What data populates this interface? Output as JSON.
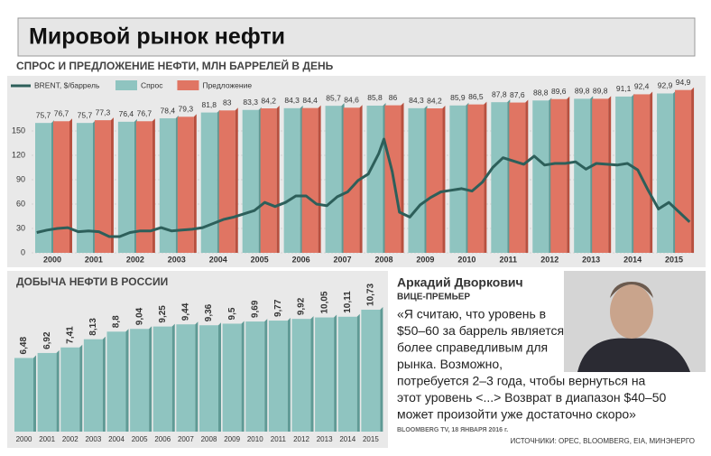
{
  "title": "Мировой рынок нефти",
  "chart_data": [
    {
      "type": "bar",
      "subtitle": "СПРОС И ПРЕДЛОЖЕНИЕ НЕФТИ, МЛН БАРРЕЛЕЙ В ДЕНЬ",
      "categories": [
        "2000",
        "2001",
        "2002",
        "2003",
        "2004",
        "2005",
        "2006",
        "2007",
        "2008",
        "2009",
        "2010",
        "2011",
        "2012",
        "2013",
        "2014",
        "2015"
      ],
      "ylim": [
        0,
        150
      ],
      "yticks": [
        0,
        30,
        60,
        90,
        120,
        150
      ],
      "grid": true,
      "y2lim": [
        0,
        100
      ],
      "xlim": [
        2000,
        2016
      ],
      "series": [
        {
          "name": "Спрос",
          "color": "#8fc4c0",
          "axis": "y2",
          "values": [
            75.7,
            75.7,
            76.4,
            78.4,
            81.8,
            83.3,
            84.3,
            85.7,
            85.8,
            84.3,
            85.9,
            87.8,
            88.8,
            89.8,
            91.1,
            92.9
          ],
          "value_labels": [
            "75,7",
            "75,7",
            "76,4",
            "78,4",
            "81,8",
            "83,3",
            "84,3",
            "85,7",
            "85,8",
            "84,3",
            "85,9",
            "87,8",
            "88,8",
            "89,8",
            "91,1",
            "92,9"
          ]
        },
        {
          "name": "Предложение",
          "color": "#e07563",
          "axis": "y2",
          "values": [
            76.7,
            77.3,
            76.7,
            79.3,
            83,
            84.2,
            84.4,
            84.6,
            86,
            84.2,
            86.5,
            87.6,
            89.6,
            89.8,
            92.4,
            94.9
          ],
          "value_labels": [
            "76,7",
            "77,3",
            "76,7",
            "79,3",
            "83",
            "84,2",
            "84,4",
            "84,6",
            "86",
            "84,2",
            "86,5",
            "87,6",
            "89,6",
            "89,8",
            "92,4",
            "94,9"
          ]
        },
        {
          "name": "BRENT, $/баррель",
          "type": "line",
          "color": "#2d5f5a",
          "x": [
            2000.125,
            2000.375,
            2000.625,
            2000.875,
            2001.125,
            2001.375,
            2001.625,
            2001.875,
            2002.125,
            2002.375,
            2002.625,
            2002.875,
            2003.125,
            2003.375,
            2003.625,
            2003.875,
            2004.125,
            2004.375,
            2004.625,
            2004.875,
            2005.125,
            2005.375,
            2005.625,
            2005.875,
            2006.125,
            2006.375,
            2006.625,
            2006.875,
            2007.125,
            2007.375,
            2007.625,
            2007.875,
            2008.125,
            2008.375,
            2008.5,
            2008.7,
            2008.875,
            2009.125,
            2009.375,
            2009.625,
            2009.875,
            2010.125,
            2010.375,
            2010.625,
            2010.875,
            2011.125,
            2011.375,
            2011.625,
            2011.875,
            2012.125,
            2012.375,
            2012.625,
            2012.875,
            2013.125,
            2013.375,
            2013.625,
            2013.875,
            2014.125,
            2014.375,
            2014.625,
            2014.875,
            2015.125,
            2015.375,
            2015.625,
            2015.875
          ],
          "values": [
            25,
            28,
            30,
            31,
            26,
            27,
            26,
            20,
            20,
            25,
            27,
            27,
            31,
            27,
            28,
            29,
            31,
            36,
            41,
            44,
            48,
            52,
            62,
            57,
            62,
            70,
            70,
            60,
            58,
            69,
            75,
            89,
            97,
            122,
            140,
            100,
            50,
            44,
            59,
            68,
            75,
            77,
            79,
            76,
            87,
            105,
            117,
            113,
            109,
            119,
            108,
            110,
            110,
            112,
            103,
            110,
            109,
            108,
            110,
            102,
            77,
            54,
            62,
            50,
            38
          ]
        }
      ]
    },
    {
      "type": "bar",
      "title": "ДОБЫЧА НЕФТИ В РОССИИ",
      "categories": [
        "2000",
        "2001",
        "2002",
        "2003",
        "2004",
        "2005",
        "2006",
        "2007",
        "2008",
        "2009",
        "2010",
        "2011",
        "2012",
        "2013",
        "2014",
        "2015"
      ],
      "values": [
        6.48,
        6.92,
        7.41,
        8.13,
        8.8,
        9.04,
        9.25,
        9.44,
        9.36,
        9.5,
        9.69,
        9.77,
        9.92,
        10.05,
        10.11,
        10.73
      ],
      "value_labels": [
        "6,48",
        "6,92",
        "7,41",
        "8,13",
        "8,8",
        "9,04",
        "9,25",
        "9,44",
        "9,36",
        "9,5",
        "9,69",
        "9,77",
        "9,92",
        "10,05",
        "10,11",
        "10,73"
      ],
      "color": "#8fc4c0",
      "ylim": [
        0,
        12
      ]
    }
  ],
  "quote": {
    "name": "Аркадий Дворкович",
    "position": "ВИЦЕ-ПРЕМЬЕР",
    "lines": [
      "«Я считаю, что уровень в",
      "$50–60 за баррель является",
      "более справедливым для",
      "рынка. Возможно,",
      "потребуется 2–3 года, чтобы вернуться на",
      "этот уровень <...> Возврат в диапазон $40–50",
      "может произойти уже достаточно скоро»"
    ],
    "source": "BLOOMBERG TV, 18 ЯНВАРЯ 2016 г."
  },
  "sources": "ИСТОЧНИКИ: OPEC, BLOOMBERG, EIA, МИНЭНЕРГО"
}
